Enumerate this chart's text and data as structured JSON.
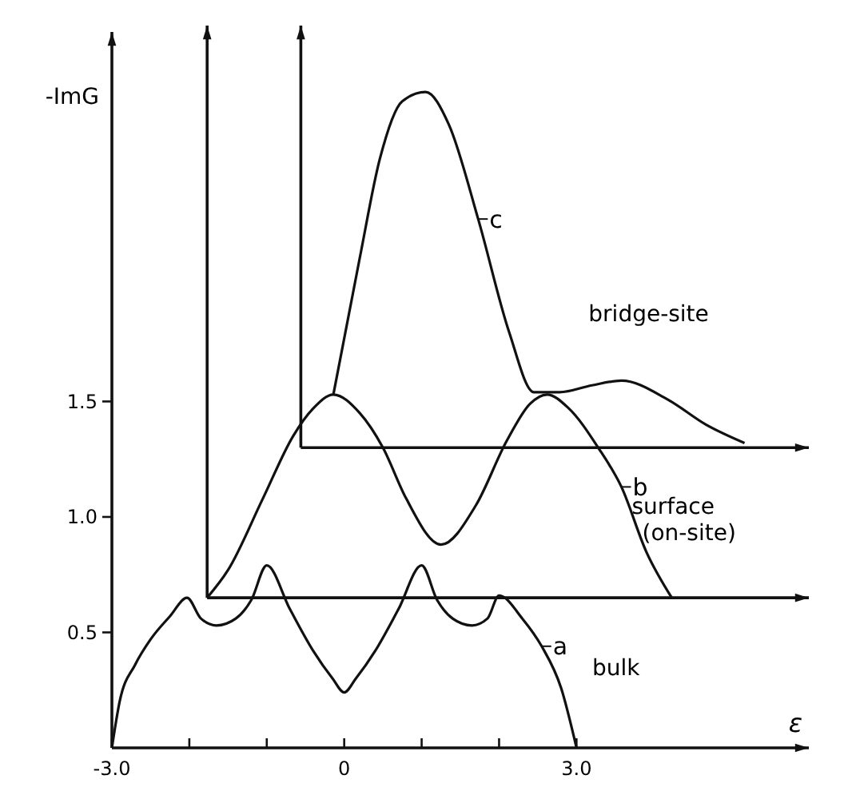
{
  "chart_data": {
    "type": "line",
    "xlabel": "ε",
    "ylabel": "-ImG",
    "xlim": [
      -3,
      6
    ],
    "ylim": [
      0,
      3.1
    ],
    "xticks": [
      {
        "value": -3,
        "label": "-3.0"
      },
      {
        "value": -2,
        "label": null
      },
      {
        "value": -1,
        "label": null
      },
      0,
      {
        "value": 1,
        "label": null
      },
      {
        "value": 2,
        "label": null
      },
      {
        "value": 3,
        "label": "3.0"
      }
    ],
    "yticks": [
      0.5,
      {
        "value": 1,
        "label": "1.0"
      },
      1.5
    ],
    "grid": false,
    "marker": "none",
    "line_style": "solid",
    "series": [
      {
        "color": "#111111",
        "x": [
          -3,
          -2.9,
          -2.7,
          -2.5,
          -2.25,
          -2.03,
          -1.85,
          -1.65,
          -1.4,
          -1.2,
          -1,
          -0.7,
          -0.4,
          -0.15,
          0,
          0.15,
          0.4,
          0.7,
          1,
          1.2,
          1.4,
          1.65,
          1.85,
          2,
          2.3,
          2.55,
          2.8,
          3
        ],
        "values": [
          0,
          0.2,
          0.36,
          0.47,
          0.57,
          0.65,
          0.56,
          0.53,
          0.56,
          0.64,
          0.79,
          0.6,
          0.42,
          0.3,
          0.24,
          0.3,
          0.42,
          0.6,
          0.79,
          0.64,
          0.56,
          0.53,
          0.56,
          0.66,
          0.56,
          0.44,
          0.26,
          0
        ]
      },
      {
        "color": "#111111",
        "x": [
          -1.77,
          -1.5,
          -1.05,
          -0.66,
          -0.4,
          -0.14,
          0.2,
          0.5,
          0.8,
          1.25,
          1.7,
          2.1,
          2.4,
          2.62,
          2.9,
          3.28,
          3.58,
          3.9,
          4.23
        ],
        "values": [
          0.65,
          0.77,
          1.08,
          1.35,
          1.47,
          1.53,
          1.45,
          1.3,
          1.08,
          0.88,
          1.05,
          1.33,
          1.49,
          1.53,
          1.47,
          1.3,
          1.13,
          0.85,
          0.65
        ]
      },
      {
        "color": "#111111",
        "x": [
          -0.14,
          0.2,
          0.46,
          0.75,
          1.05,
          1.35,
          1.73,
          2.13,
          2.45,
          2.78,
          3.2,
          3.58,
          4.17,
          4.67,
          5.17
        ],
        "values": [
          1.53,
          2.12,
          2.55,
          2.8,
          2.84,
          2.7,
          2.29,
          1.8,
          1.54,
          1.54,
          1.57,
          1.59,
          1.51,
          1.4,
          1.32
        ]
      }
    ],
    "ref_lines": [
      {
        "axis": "x",
        "value": -1.77,
        "label": null
      },
      {
        "axis": "x",
        "value": -0.56,
        "label": null
      },
      {
        "axis": "y",
        "value": 0.65,
        "label": null
      },
      {
        "axis": "y",
        "value": 1.3,
        "label": null
      }
    ],
    "annotations": [
      {
        "text": "a",
        "x": 2.55,
        "y": 0.44
      },
      {
        "text": "b",
        "x": 3.58,
        "y": 1.13
      },
      {
        "text": "c",
        "x": 1.73,
        "y": 2.29
      },
      "bulk",
      "surface (on-site)",
      "bridge-site"
    ]
  }
}
